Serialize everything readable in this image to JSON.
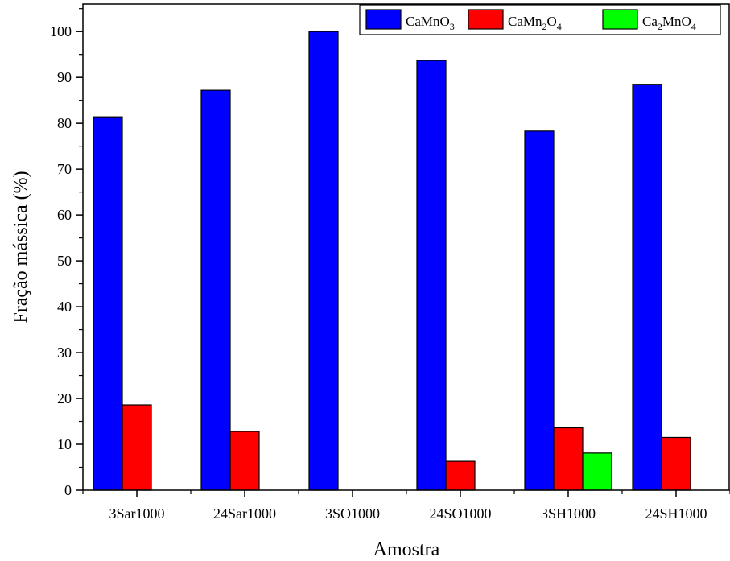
{
  "chart_data": {
    "type": "bar",
    "xlabel": "Amostra",
    "ylabel": "Fração mássica (%)",
    "ylim": [
      0,
      106
    ],
    "yticks": [
      0,
      10,
      20,
      30,
      40,
      50,
      60,
      70,
      80,
      90,
      100
    ],
    "categories": [
      "3Sar1000",
      "24Sar1000",
      "3SO1000",
      "24SO1000",
      "3SH1000",
      "24SH1000"
    ],
    "series": [
      {
        "name": "CaMnO3",
        "label_main": "CaMnO",
        "label_sub": "3",
        "label_tail": "",
        "label_sub2": "",
        "color": "#0000ff",
        "values": [
          81.4,
          87.2,
          100,
          93.7,
          78.3,
          88.5
        ]
      },
      {
        "name": "CaMn2O4",
        "label_main": "CaMn",
        "label_sub": "2",
        "label_tail": "O",
        "label_sub2": "4",
        "color": "#ff0000",
        "values": [
          18.6,
          12.8,
          0,
          6.3,
          13.6,
          11.5
        ]
      },
      {
        "name": "Ca2MnO4",
        "label_main": "Ca",
        "label_sub": "2",
        "label_tail": "MnO",
        "label_sub2": "4",
        "color": "#00ff00",
        "values": [
          0,
          0,
          0,
          0,
          8.1,
          0
        ]
      }
    ],
    "legend_position": "top-right",
    "grid": false
  }
}
